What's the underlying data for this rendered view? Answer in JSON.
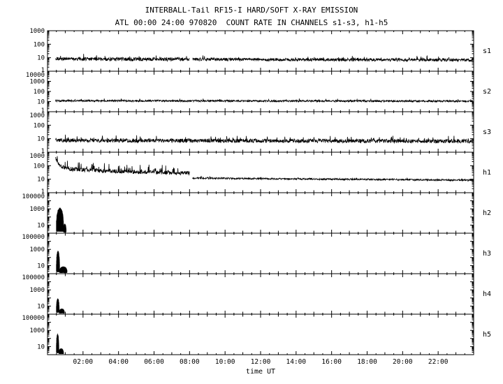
{
  "chart_data": {
    "type": "line",
    "title": "INTERBALL-Tail RF15-I HARD/SOFT X-RAY EMISSION",
    "subtitle": "ATL 00:00 24:00 970820  COUNT RATE IN CHANNELS s1-s3, h1-h5",
    "xlabel": "time UT",
    "y_scale": "log",
    "grid": false,
    "legend": "none",
    "x_range_hours": [
      0,
      24
    ],
    "x_major_tick_hours": [
      2,
      4,
      6,
      8,
      10,
      12,
      14,
      16,
      18,
      20,
      22
    ],
    "x_tick_labels": [
      "02:00",
      "04:00",
      "06:00",
      "08:00",
      "10:00",
      "12:00",
      "14:00",
      "16:00",
      "18:00",
      "20:00",
      "22:00"
    ],
    "x_minor_tick_step_hours": 0.5,
    "colors": {
      "background": "#ffffff",
      "foreground": "#000000"
    },
    "panels": [
      {
        "label": "s1",
        "y_log_range": [
          0,
          3
        ],
        "y_tick_values": [
          1,
          10,
          100,
          1000
        ],
        "segments": [
          {
            "type": "noisy-line",
            "points": [
              [
                0.45,
                8.5
              ],
              [
                2,
                8
              ],
              [
                8.0,
                7.5
              ]
            ],
            "noise_dex": 0.13,
            "spike_dex": 0.28,
            "spike_prob": 0.07
          },
          {
            "type": "noisy-line",
            "points": [
              [
                8.17,
                7.5
              ],
              [
                23.95,
                6.8
              ]
            ],
            "noise_dex": 0.11,
            "spike_dex": 0.22,
            "spike_prob": 0.05
          }
        ]
      },
      {
        "label": "s2",
        "y_log_range": [
          0,
          4
        ],
        "y_tick_values": [
          1,
          10,
          100,
          1000,
          10000
        ],
        "segments": [
          {
            "type": "noisy-line",
            "points": [
              [
                0.45,
                12
              ],
              [
                23.95,
                11
              ]
            ],
            "noise_dex": 0.09,
            "spike_dex": 0.18,
            "spike_prob": 0.05
          }
        ]
      },
      {
        "label": "s3",
        "y_log_range": [
          0,
          3
        ],
        "y_tick_values": [
          1,
          10,
          100,
          1000
        ],
        "segments": [
          {
            "type": "noisy-line",
            "points": [
              [
                0.45,
                7.5
              ],
              [
                23.95,
                6.5
              ]
            ],
            "noise_dex": 0.14,
            "spike_dex": 0.3,
            "spike_prob": 0.08
          }
        ]
      },
      {
        "label": "h1",
        "y_log_range": [
          0,
          3
        ],
        "y_tick_values": [
          1,
          10,
          100,
          1000
        ],
        "segments": [
          {
            "type": "noisy-line",
            "points": [
              [
                0.45,
                350
              ],
              [
                0.7,
                90
              ],
              [
                1.3,
                55
              ],
              [
                3,
                42
              ],
              [
                5.5,
                34
              ],
              [
                8.0,
                28
              ]
            ],
            "noise_dex": 0.15,
            "spike_dex": 0.5,
            "spike_prob": 0.12
          },
          {
            "type": "noisy-line",
            "points": [
              [
                8.17,
                12
              ],
              [
                16,
                10
              ],
              [
                23.95,
                8.5
              ]
            ],
            "noise_dex": 0.06,
            "spike_dex": 0.12,
            "spike_prob": 0.04
          }
        ]
      },
      {
        "label": "h2",
        "y_log_range": [
          0,
          5
        ],
        "y_tick_values": [
          100000,
          1000,
          10
        ],
        "segments": [
          {
            "type": "burst",
            "t_range": [
              0.5,
              0.9
            ],
            "y_range": [
              1.5,
              1500
            ]
          },
          {
            "type": "burst",
            "t_range": [
              0.9,
              1.05
            ],
            "y_range": [
              1.2,
              15
            ]
          }
        ]
      },
      {
        "label": "h3",
        "y_log_range": [
          0,
          5
        ],
        "y_tick_values": [
          100000,
          1000,
          10
        ],
        "segments": [
          {
            "type": "burst",
            "t_range": [
              0.5,
              0.68
            ],
            "y_range": [
              1.5,
              700
            ]
          },
          {
            "type": "burst",
            "t_range": [
              0.68,
              1.1
            ],
            "y_range": [
              1.2,
              8
            ]
          }
        ]
      },
      {
        "label": "h4",
        "y_log_range": [
          0,
          5
        ],
        "y_tick_values": [
          100000,
          1000,
          10
        ],
        "segments": [
          {
            "type": "burst",
            "t_range": [
              0.5,
              0.66
            ],
            "y_range": [
              1.5,
              90
            ]
          },
          {
            "type": "burst",
            "t_range": [
              0.66,
              0.95
            ],
            "y_range": [
              1.2,
              5
            ]
          }
        ]
      },
      {
        "label": "h5",
        "y_log_range": [
          0,
          5
        ],
        "y_tick_values": [
          100000,
          1000,
          10
        ],
        "segments": [
          {
            "type": "burst",
            "t_range": [
              0.5,
              0.64
            ],
            "y_range": [
              1.5,
              400
            ]
          },
          {
            "type": "burst",
            "t_range": [
              0.64,
              0.9
            ],
            "y_range": [
              1.2,
              6
            ]
          }
        ]
      }
    ]
  }
}
